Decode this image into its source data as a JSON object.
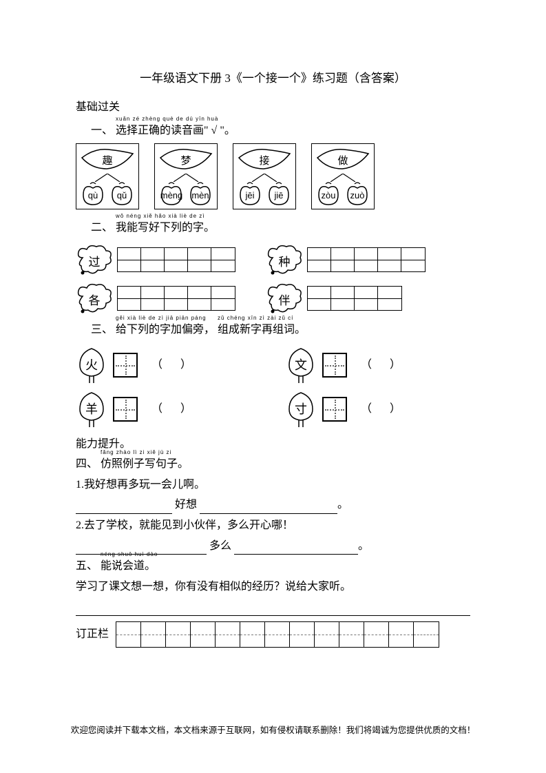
{
  "title": "一年级语文下册 3《一个接一个》练习题（含答案）",
  "basics_heading": "基础过关",
  "q1": {
    "prefix": "一、",
    "text": "选择正确的读音画\" √ \"。",
    "pinyin_over": "xuǎn zé zhèng què de dú yīn huà",
    "items": [
      {
        "char": "趣",
        "left": "qù",
        "right": "qǔ"
      },
      {
        "char": "梦",
        "left": "mèng",
        "right": "mèn"
      },
      {
        "char": "接",
        "left": "jēi",
        "right": "jiē"
      },
      {
        "char": "做",
        "left": "zòu",
        "right": "zuò"
      }
    ]
  },
  "q2": {
    "prefix": "二、",
    "text": "我能写好下列的字。",
    "pinyin_over": "wǒ néng xiě hǎo xià liè de zì",
    "row1": [
      {
        "char": "过",
        "cells": 5
      },
      {
        "char": "种",
        "cells": 5
      }
    ],
    "row2": [
      {
        "char": "各",
        "cells": 5
      },
      {
        "char": "伴",
        "cells": 4
      }
    ]
  },
  "q3": {
    "prefix": "三、",
    "text1": "给下列的字加偏旁，",
    "pinyin1": "gěi xià liè de zì jiā piān páng",
    "text2": "组成新字再组词。",
    "pinyin2": "zǔ chéng xīn zì zài zǔ cí",
    "row1": [
      {
        "char": "火"
      },
      {
        "char": "文"
      }
    ],
    "row2": [
      {
        "char": "羊"
      },
      {
        "char": "寸"
      }
    ]
  },
  "ability_heading": "能力提升。",
  "q4": {
    "prefix": "四、",
    "text": "仿照例子写句子。",
    "pinyin_over": "fǎng zhào lì zi xiě jù zi",
    "line1": "1.我好想再多玩一会儿啊。",
    "fill1_mid": "好想",
    "line2": "2.去了学校，就能见到小伙伴，多么开心哪！",
    "fill2_mid": "多么"
  },
  "q5": {
    "prefix": "五、",
    "text": "能说会道。",
    "pinyin_over": "néng shuō huì dào",
    "body": "学习了课文想一想，你有没有相似的经历？说给大家听。"
  },
  "correction_label": "订正栏",
  "correction_cells": 13,
  "footer": "欢迎您阅读并下载本文档，本文档来源于互联网，如有侵权请联系删除！我们将竭诚为您提供优质的文档！",
  "colors": {
    "text": "#000000",
    "bg": "#ffffff",
    "dash": "#777777",
    "dot": "#666666"
  }
}
